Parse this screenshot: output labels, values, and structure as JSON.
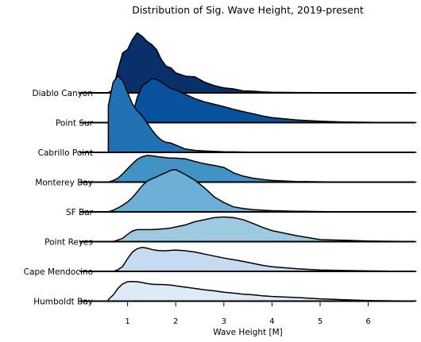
{
  "chart_data": {
    "type": "ridgeline",
    "title": "Distribution of Sig. Wave Height, 2019-present",
    "xlabel": "Wave Height [M]",
    "ylabel": "",
    "xlim": [
      0,
      7
    ],
    "xticks": [
      1,
      2,
      3,
      4,
      5,
      6
    ],
    "grid": false,
    "legend": "none",
    "x": [
      0.6,
      0.7,
      0.8,
      0.9,
      1.0,
      1.1,
      1.2,
      1.3,
      1.4,
      1.5,
      1.6,
      1.7,
      1.8,
      1.9,
      2.0,
      2.2,
      2.4,
      2.6,
      2.8,
      3.0,
      3.2,
      3.4,
      3.6,
      3.8,
      4.0,
      4.5,
      5.0,
      5.5,
      6.0,
      6.5,
      7.0
    ],
    "series": [
      {
        "name": "Diablo Canyon",
        "color": "#08306b",
        "values": [
          0,
          0.1,
          0.7,
          1.2,
          1.3,
          1.6,
          1.8,
          1.7,
          1.55,
          1.45,
          1.3,
          1.0,
          0.8,
          0.75,
          0.6,
          0.5,
          0.48,
          0.32,
          0.22,
          0.15,
          0.12,
          0.06,
          0.05,
          0.03,
          0.02,
          0.01,
          0.005,
          0,
          0,
          0,
          0
        ]
      },
      {
        "name": "Point Sur",
        "color": "#08519c",
        "values": [
          0,
          0,
          0,
          0,
          0,
          0.2,
          0.75,
          1.1,
          1.2,
          1.32,
          1.3,
          1.22,
          1.12,
          1.02,
          0.98,
          0.85,
          0.72,
          0.62,
          0.55,
          0.48,
          0.4,
          0.33,
          0.27,
          0.2,
          0.15,
          0.08,
          0.04,
          0.02,
          0.01,
          0,
          0
        ]
      },
      {
        "name": "Cabrillo Point",
        "color": "#2171b5",
        "values": [
          1.4,
          2.1,
          2.3,
          2.15,
          1.8,
          1.45,
          1.25,
          1.1,
          0.9,
          0.68,
          0.5,
          0.37,
          0.3,
          0.28,
          0.22,
          0.1,
          0.06,
          0.04,
          0.03,
          0.02,
          0.015,
          0.01,
          0.008,
          0.005,
          0.003,
          0,
          0,
          0,
          0,
          0,
          0
        ]
      },
      {
        "name": "Monterey Bay",
        "color": "#4292c6",
        "values": [
          0,
          0.05,
          0.12,
          0.25,
          0.4,
          0.55,
          0.68,
          0.76,
          0.8,
          0.79,
          0.77,
          0.75,
          0.73,
          0.72,
          0.72,
          0.7,
          0.62,
          0.55,
          0.5,
          0.44,
          0.28,
          0.18,
          0.12,
          0.08,
          0.05,
          0.02,
          0.01,
          0,
          0,
          0,
          0
        ]
      },
      {
        "name": "SF Bar",
        "color": "#6baed6",
        "values": [
          0,
          0.05,
          0.12,
          0.2,
          0.3,
          0.43,
          0.6,
          0.78,
          0.92,
          0.99,
          1.05,
          1.12,
          1.18,
          1.25,
          1.27,
          1.12,
          0.95,
          0.72,
          0.45,
          0.28,
          0.15,
          0.1,
          0.07,
          0.05,
          0.035,
          0.02,
          0.01,
          0,
          0,
          0,
          0
        ]
      },
      {
        "name": "Point Reyes",
        "color": "#9ecae1",
        "values": [
          0,
          0,
          0.05,
          0.1,
          0.22,
          0.32,
          0.36,
          0.36,
          0.36,
          0.36,
          0.37,
          0.38,
          0.39,
          0.41,
          0.44,
          0.5,
          0.6,
          0.66,
          0.72,
          0.74,
          0.72,
          0.66,
          0.55,
          0.43,
          0.33,
          0.18,
          0.06,
          0.04,
          0.02,
          0.01,
          0
        ]
      },
      {
        "name": "Cape Mendocino",
        "color": "#c6dbef",
        "values": [
          0,
          0,
          0.05,
          0.15,
          0.38,
          0.58,
          0.68,
          0.72,
          0.7,
          0.66,
          0.63,
          0.62,
          0.62,
          0.63,
          0.64,
          0.62,
          0.58,
          0.52,
          0.46,
          0.4,
          0.35,
          0.3,
          0.24,
          0.18,
          0.14,
          0.08,
          0.04,
          0.025,
          0.015,
          0.008,
          0.003
        ]
      },
      {
        "name": "Humboldt Bay",
        "color": "#deebf7",
        "values": [
          0.05,
          0.18,
          0.38,
          0.52,
          0.58,
          0.59,
          0.58,
          0.56,
          0.53,
          0.51,
          0.5,
          0.5,
          0.49,
          0.48,
          0.46,
          0.42,
          0.38,
          0.34,
          0.31,
          0.27,
          0.24,
          0.21,
          0.19,
          0.16,
          0.14,
          0.11,
          0.07,
          0.04,
          0.02,
          0.01,
          0.005
        ]
      }
    ]
  }
}
